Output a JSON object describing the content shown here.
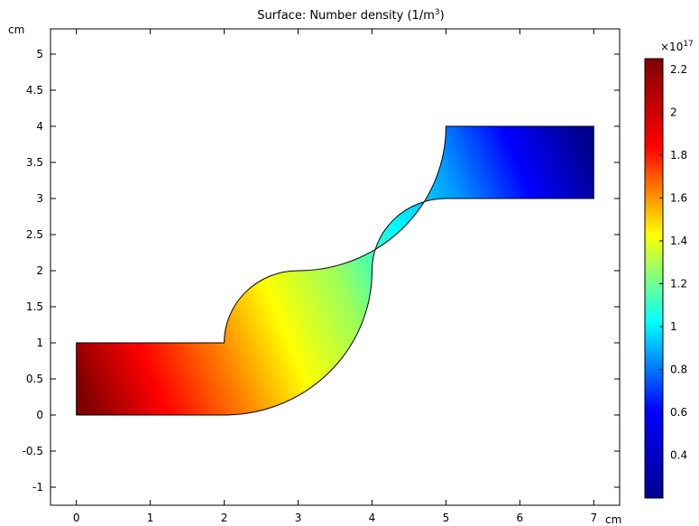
{
  "chart_data": {
    "type": "heatmap",
    "title": "Surface: Number density (1/m³)",
    "title_main": "Surface: Number density (1/m",
    "title_sup": "3",
    "title_close": ")",
    "xlabel": "cm",
    "ylabel": "cm",
    "xlim": [
      -0.35,
      7.35
    ],
    "ylim": [
      -1.25,
      5.35
    ],
    "xticks": [
      0,
      1,
      2,
      3,
      4,
      5,
      6,
      7
    ],
    "yticks": [
      -1,
      -0.5,
      0,
      0.5,
      1,
      1.5,
      2,
      2.5,
      3,
      3.5,
      4,
      4.5,
      5
    ],
    "xtick_labels": [
      "0",
      "1",
      "2",
      "3",
      "4",
      "5",
      "6",
      "7"
    ],
    "ytick_labels": [
      "-1",
      "-0.5",
      "0",
      "0.5",
      "1",
      "1.5",
      "2",
      "2.5",
      "3",
      "3.5",
      "4",
      "4.5",
      "5"
    ],
    "geometry": {
      "description_free": true,
      "lower_channel": {
        "x": [
          0,
          2
        ],
        "y": [
          0,
          1
        ]
      },
      "lower_bend_center": [
        2,
        2
      ],
      "upper_bend_center": [
        5,
        2
      ],
      "bend_radii": [
        1,
        2
      ],
      "upper_channel": {
        "x": [
          5,
          7
        ],
        "y": [
          3,
          4
        ]
      }
    },
    "field": {
      "inlet_value": 2.25e+17,
      "outlet_value": 2e+16,
      "profile": "decreasing along channel from left inlet to right outlet"
    },
    "colorbar": {
      "range": [
        0.2,
        2.25
      ],
      "ticks": [
        0.4,
        0.6,
        0.8,
        1,
        1.2,
        1.4,
        1.6,
        1.8,
        2,
        2.2
      ],
      "tick_labels": [
        "0.4",
        "0.6",
        "0.8",
        "1",
        "1.2",
        "1.4",
        "1.6",
        "1.8",
        "2",
        "2.2"
      ],
      "multiplier_base": "×10",
      "multiplier_exp": "17",
      "colormap": "jet",
      "colormap_colors": [
        "#00008f",
        "#0000ff",
        "#00ffff",
        "#ffff00",
        "#ff0000",
        "#800000"
      ]
    },
    "grid": false
  }
}
